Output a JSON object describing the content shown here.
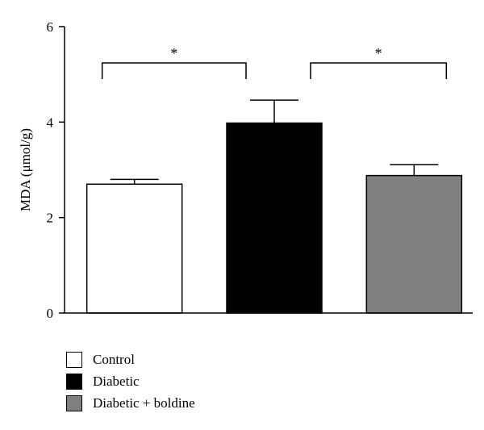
{
  "chart_data": {
    "type": "bar",
    "title": "",
    "xlabel": "",
    "ylabel": "MDA (μmol/g)",
    "ylim": [
      0,
      6
    ],
    "yticks": [
      "0",
      "2",
      "4",
      "6"
    ],
    "categories": [
      "Control",
      "Diabetic",
      "Diabetic + boldine"
    ],
    "values": [
      2.7,
      3.98,
      2.88
    ],
    "errors": [
      0.1,
      0.48,
      0.23
    ],
    "colors": [
      "#ffffff",
      "#000000",
      "#808080"
    ],
    "significance": [
      {
        "from": "Control",
        "to": "Diabetic",
        "label": "*"
      },
      {
        "from": "Diabetic",
        "to": "Diabetic + boldine",
        "label": "*"
      }
    ],
    "legend": {
      "placement": "bottom-left",
      "entries": [
        "Control",
        "Diabetic",
        "Diabetic + boldine"
      ]
    }
  }
}
